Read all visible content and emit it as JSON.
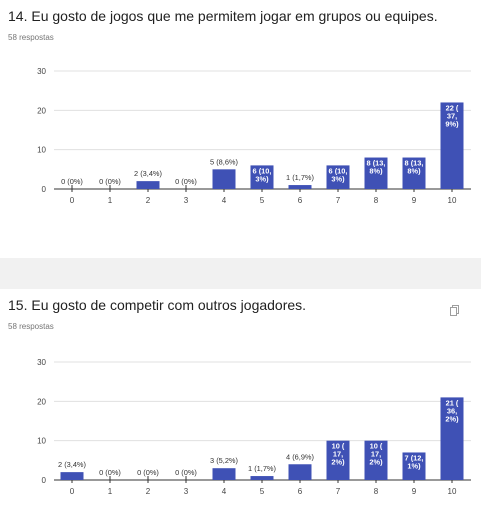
{
  "questions": [
    {
      "title": "14. Eu gosto de jogos que me permitem jogar em grupos ou equipes.",
      "responses": "58 respostas"
    },
    {
      "title": "15. Eu gosto de competir com outros jogadores.",
      "responses": "58 respostas"
    }
  ],
  "colors": {
    "bar": "#3f51b5",
    "grid": "#e0e0e0",
    "axis": "#333333",
    "background": "#f1f1f1"
  },
  "icons": {
    "copy": "copy-icon"
  },
  "chart_data": [
    {
      "type": "bar",
      "categories": [
        "0",
        "1",
        "2",
        "3",
        "4",
        "5",
        "6",
        "7",
        "8",
        "9",
        "10"
      ],
      "values": [
        0,
        0,
        2,
        0,
        5,
        6,
        1,
        6,
        8,
        8,
        22
      ],
      "data_labels": [
        [
          "0 (0%)"
        ],
        [
          "0 (0%)"
        ],
        [
          "2 (3,4%)"
        ],
        [
          "0 (0%)"
        ],
        [
          "5 (8,6%)"
        ],
        [
          "6 (10,",
          "3%)"
        ],
        [
          "1 (1,7%)"
        ],
        [
          "6 (10,",
          "3%)"
        ],
        [
          "8 (13,",
          "8%)"
        ],
        [
          "8 (13,",
          "8%)"
        ],
        [
          "22 (",
          "37,",
          "9%)"
        ]
      ],
      "yticks": [
        0,
        10,
        20,
        30
      ],
      "ylim": [
        0,
        30
      ]
    },
    {
      "type": "bar",
      "categories": [
        "0",
        "1",
        "2",
        "3",
        "4",
        "5",
        "6",
        "7",
        "8",
        "9",
        "10"
      ],
      "values": [
        2,
        0,
        0,
        0,
        3,
        1,
        4,
        10,
        10,
        7,
        21
      ],
      "data_labels": [
        [
          "2 (3,4%)"
        ],
        [
          "0 (0%)"
        ],
        [
          "0 (0%)"
        ],
        [
          "0 (0%)"
        ],
        [
          "3 (5,2%)"
        ],
        [
          "1 (1,7%)"
        ],
        [
          "4 (6,9%)"
        ],
        [
          "10 (",
          "17,",
          "2%)"
        ],
        [
          "10 (",
          "17,",
          "2%)"
        ],
        [
          "7 (12,",
          "1%)"
        ],
        [
          "21 (",
          "36,",
          "2%)"
        ]
      ],
      "yticks": [
        0,
        10,
        20,
        30
      ],
      "ylim": [
        0,
        30
      ]
    }
  ]
}
